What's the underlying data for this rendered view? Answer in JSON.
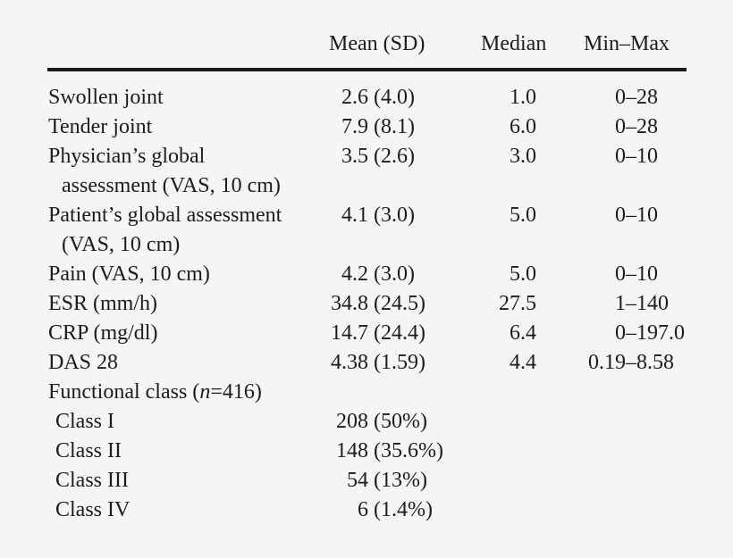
{
  "table": {
    "columns": {
      "mean_sd": "Mean (SD)",
      "median": "Median",
      "minmax": "Min–Max"
    },
    "rows": [
      {
        "label": "Swollen joint",
        "mean": "2.6",
        "sd": "(4.0)",
        "median": "1.0",
        "min": "0",
        "dash": "–",
        "max": "28"
      },
      {
        "label": "Tender joint",
        "mean": "7.9",
        "sd": "(8.1)",
        "median": "6.0",
        "min": "0",
        "dash": "–",
        "max": "28"
      },
      {
        "label": "Physician’s global",
        "mean": "3.5",
        "sd": "(2.6)",
        "median": "3.0",
        "min": "0",
        "dash": "–",
        "max": "10"
      },
      {
        "label": "assessment (VAS, 10 cm)"
      },
      {
        "label": "Patient’s global assessment",
        "mean": "4.1",
        "sd": "(3.0)",
        "median": "5.0",
        "min": "0",
        "dash": "–",
        "max": "10"
      },
      {
        "label": "(VAS, 10 cm)"
      },
      {
        "label": "Pain (VAS, 10 cm)",
        "mean": "4.2",
        "sd": "(3.0)",
        "median": "5.0",
        "min": "0",
        "dash": "–",
        "max": "10"
      },
      {
        "label": "ESR (mm/h)",
        "mean": "34.8",
        "sd": "(24.5)",
        "median": "27.5",
        "min": "1",
        "dash": "–",
        "max": "140"
      },
      {
        "label": "CRP (mg/dl)",
        "mean": "14.7",
        "sd": "(24.4)",
        "median": "6.4",
        "min": "0",
        "dash": "–",
        "max": "197.0"
      },
      {
        "label": "DAS 28",
        "mean": "4.38",
        "sd": "(1.59)",
        "median": "4.4",
        "min": "0.19",
        "dash": "–",
        "max": "8.58"
      },
      {
        "label_pre": "Functional class (",
        "label_n": "n",
        "label_post": "=416)"
      },
      {
        "label": "Class I",
        "mean": "208",
        "sd": "(50%)"
      },
      {
        "label": "Class II",
        "mean": "148",
        "sd": "(35.6%)"
      },
      {
        "label": "Class III",
        "mean": "54",
        "sd": "(13%)"
      },
      {
        "label": "Class IV",
        "mean": "6",
        "sd": "(1.4%)"
      }
    ]
  },
  "colors": {
    "background": "#f5f5f4",
    "text": "#1c1c1c",
    "rule": "#1a1a1a"
  }
}
